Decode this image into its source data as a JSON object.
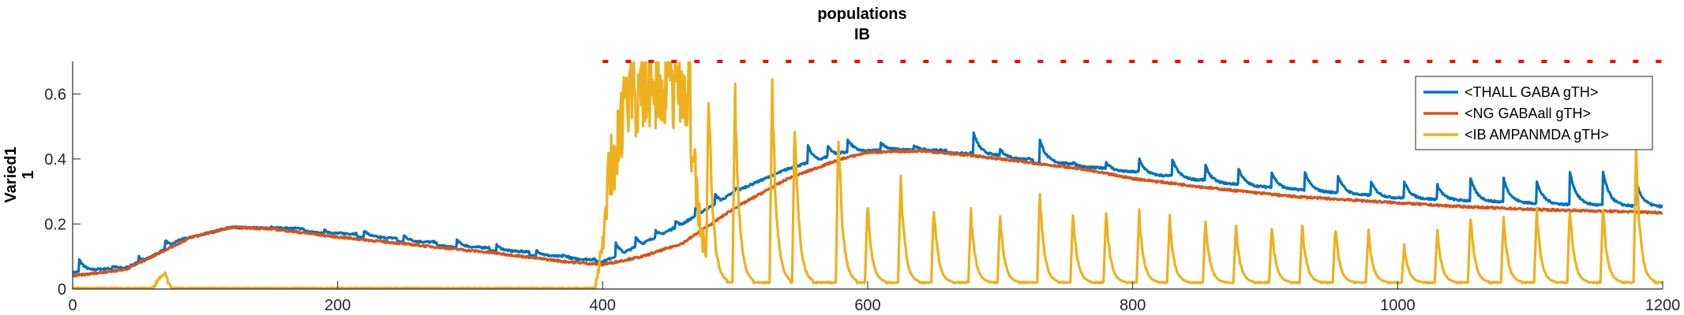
{
  "chart_data": {
    "type": "line",
    "title": [
      "populations",
      "IB"
    ],
    "ylabel": [
      "Varied1",
      "1"
    ],
    "xlabel": "",
    "xlim": [
      0,
      1200
    ],
    "ylim": [
      0,
      0.7
    ],
    "xticks": [
      0,
      200,
      400,
      600,
      800,
      1000,
      1200
    ],
    "yticks": [
      0,
      0.2,
      0.4,
      0.6
    ],
    "ytick_labels": [
      "0",
      "0.2",
      "0.4",
      "0.6"
    ],
    "grid": false,
    "legend_position": "top-right",
    "colors": {
      "blue": "#0072BD",
      "orange": "#D95319",
      "yellow": "#EDB120",
      "red": "#FF0000"
    },
    "series": [
      {
        "name": "<THALL GABA gTH>",
        "color": "#0072BD",
        "baseline": [
          [
            0,
            0.05
          ],
          [
            15,
            0.06
          ],
          [
            40,
            0.065
          ],
          [
            60,
            0.1
          ],
          [
            80,
            0.15
          ],
          [
            120,
            0.19
          ],
          [
            160,
            0.185
          ],
          [
            200,
            0.165
          ],
          [
            260,
            0.14
          ],
          [
            320,
            0.115
          ],
          [
            360,
            0.095
          ],
          [
            398,
            0.08
          ],
          [
            420,
            0.12
          ],
          [
            460,
            0.2
          ],
          [
            500,
            0.3
          ],
          [
            540,
            0.37
          ],
          [
            580,
            0.42
          ],
          [
            620,
            0.43
          ],
          [
            660,
            0.42
          ],
          [
            700,
            0.4
          ],
          [
            760,
            0.37
          ],
          [
            800,
            0.35
          ],
          [
            860,
            0.32
          ],
          [
            920,
            0.3
          ],
          [
            980,
            0.28
          ],
          [
            1040,
            0.27
          ],
          [
            1100,
            0.26
          ],
          [
            1150,
            0.255
          ],
          [
            1200,
            0.25
          ]
        ],
        "spikes": [
          [
            5,
            0.09
          ],
          [
            30,
            0.07
          ],
          [
            50,
            0.1
          ],
          [
            70,
            0.15
          ],
          [
            150,
            0.19
          ],
          [
            190,
            0.18
          ],
          [
            220,
            0.18
          ],
          [
            250,
            0.165
          ],
          [
            290,
            0.15
          ],
          [
            320,
            0.135
          ],
          [
            350,
            0.12
          ],
          [
            370,
            0.105
          ],
          [
            390,
            0.09
          ],
          [
            410,
            0.14
          ],
          [
            425,
            0.16
          ],
          [
            440,
            0.18
          ],
          [
            455,
            0.21
          ],
          [
            470,
            0.25
          ],
          [
            485,
            0.29
          ],
          [
            500,
            0.31
          ],
          [
            515,
            0.33
          ],
          [
            527,
            0.32
          ],
          [
            540,
            0.37
          ],
          [
            555,
            0.44
          ],
          [
            570,
            0.44
          ],
          [
            585,
            0.46
          ],
          [
            610,
            0.45
          ],
          [
            635,
            0.44
          ],
          [
            665,
            0.41
          ],
          [
            680,
            0.48
          ],
          [
            700,
            0.43
          ],
          [
            730,
            0.46
          ],
          [
            755,
            0.39
          ],
          [
            780,
            0.39
          ],
          [
            805,
            0.4
          ],
          [
            830,
            0.4
          ],
          [
            855,
            0.38
          ],
          [
            880,
            0.37
          ],
          [
            905,
            0.36
          ],
          [
            930,
            0.36
          ],
          [
            955,
            0.35
          ],
          [
            980,
            0.33
          ],
          [
            1005,
            0.33
          ],
          [
            1030,
            0.32
          ],
          [
            1055,
            0.34
          ],
          [
            1080,
            0.34
          ],
          [
            1105,
            0.33
          ],
          [
            1130,
            0.36
          ],
          [
            1155,
            0.36
          ],
          [
            1180,
            0.33
          ],
          [
            1200,
            0.25
          ]
        ]
      },
      {
        "name": "<NG GABAall gTH>",
        "color": "#D95319",
        "points": [
          [
            0,
            0.04
          ],
          [
            20,
            0.05
          ],
          [
            40,
            0.06
          ],
          [
            55,
            0.09
          ],
          [
            70,
            0.12
          ],
          [
            90,
            0.16
          ],
          [
            120,
            0.19
          ],
          [
            150,
            0.185
          ],
          [
            200,
            0.16
          ],
          [
            260,
            0.135
          ],
          [
            320,
            0.11
          ],
          [
            370,
            0.085
          ],
          [
            400,
            0.075
          ],
          [
            430,
            0.1
          ],
          [
            460,
            0.14
          ],
          [
            500,
            0.25
          ],
          [
            540,
            0.34
          ],
          [
            580,
            0.4
          ],
          [
            600,
            0.42
          ],
          [
            640,
            0.425
          ],
          [
            680,
            0.41
          ],
          [
            720,
            0.39
          ],
          [
            760,
            0.37
          ],
          [
            800,
            0.34
          ],
          [
            860,
            0.31
          ],
          [
            920,
            0.285
          ],
          [
            980,
            0.27
          ],
          [
            1040,
            0.255
          ],
          [
            1100,
            0.245
          ],
          [
            1150,
            0.24
          ],
          [
            1200,
            0.235
          ]
        ]
      },
      {
        "name": "<IB AMPANMDA gTH>",
        "color": "#EDB120",
        "baseline": 0.02,
        "burst": [
          [
            395,
            0.02
          ],
          [
            400,
            0.2
          ],
          [
            405,
            0.45
          ],
          [
            410,
            0.58
          ],
          [
            415,
            0.63
          ],
          [
            420,
            0.7
          ],
          [
            425,
            0.67
          ],
          [
            430,
            0.7
          ],
          [
            440,
            0.7
          ],
          [
            450,
            0.7
          ],
          [
            460,
            0.7
          ],
          [
            466,
            0.7
          ],
          [
            472,
            0.3
          ],
          [
            480,
            0.05
          ]
        ],
        "peaks": [
          [
            480,
            0.66
          ],
          [
            500,
            0.64
          ],
          [
            528,
            0.66
          ],
          [
            545,
            0.56
          ],
          [
            578,
            0.52
          ],
          [
            600,
            0.28
          ],
          [
            625,
            0.36
          ],
          [
            650,
            0.27
          ],
          [
            678,
            0.25
          ],
          [
            700,
            0.24
          ],
          [
            730,
            0.32
          ],
          [
            755,
            0.25
          ],
          [
            780,
            0.25
          ],
          [
            805,
            0.25
          ],
          [
            828,
            0.23
          ],
          [
            855,
            0.23
          ],
          [
            878,
            0.2
          ],
          [
            905,
            0.2
          ],
          [
            928,
            0.21
          ],
          [
            953,
            0.2
          ],
          [
            978,
            0.19
          ],
          [
            1005,
            0.14
          ],
          [
            1030,
            0.19
          ],
          [
            1055,
            0.24
          ],
          [
            1080,
            0.23
          ],
          [
            1105,
            0.25
          ],
          [
            1130,
            0.27
          ],
          [
            1155,
            0.26
          ],
          [
            1180,
            0.44
          ]
        ],
        "early_bump": [
          [
            60,
            0.0
          ],
          [
            65,
            0.03
          ],
          [
            70,
            0.05
          ],
          [
            72,
            0.02
          ],
          [
            76,
            0.0
          ]
        ]
      }
    ],
    "markers": {
      "color": "#FF0000",
      "style": "dotted",
      "y": 0.7,
      "xlim": [
        400,
        1200
      ]
    }
  }
}
